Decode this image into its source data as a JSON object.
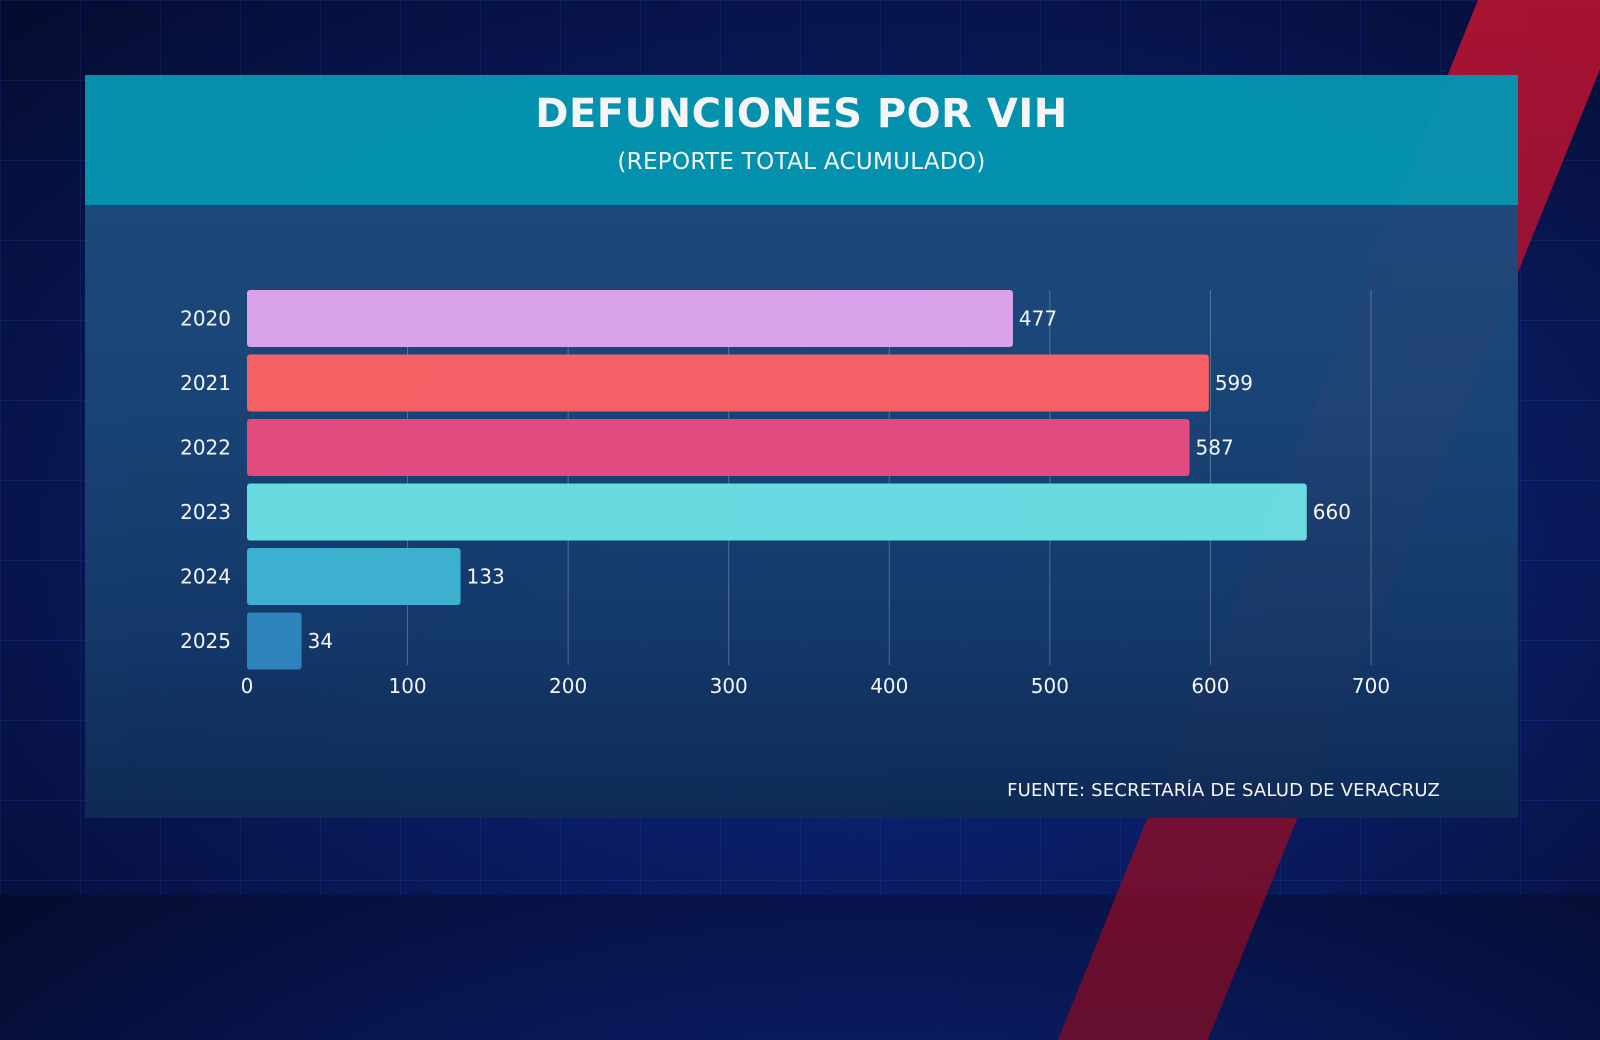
{
  "header": {
    "title": "DEFUNCIONES POR VIH",
    "subtitle": "(REPORTE TOTAL ACUMULADO)"
  },
  "source": "FUENTE: SECRETARÍA DE SALUD DE VERACRUZ",
  "chart_data": {
    "type": "bar",
    "orientation": "horizontal",
    "title": "DEFUNCIONES POR VIH",
    "subtitle": "(REPORTE TOTAL ACUMULADO)",
    "categories": [
      "2020",
      "2021",
      "2022",
      "2023",
      "2024",
      "2025"
    ],
    "values": [
      477,
      599,
      587,
      660,
      133,
      34
    ],
    "bar_colors": [
      "#e2a8ef",
      "#ff6466",
      "#ec4c80",
      "#6ce3e6",
      "#40b6d5",
      "#2f88be"
    ],
    "xlim": [
      0,
      700
    ],
    "xticks": [
      0,
      100,
      200,
      300,
      400,
      500,
      600,
      700
    ],
    "grid": true,
    "data_labels": true,
    "xlabel": "",
    "ylabel": ""
  }
}
